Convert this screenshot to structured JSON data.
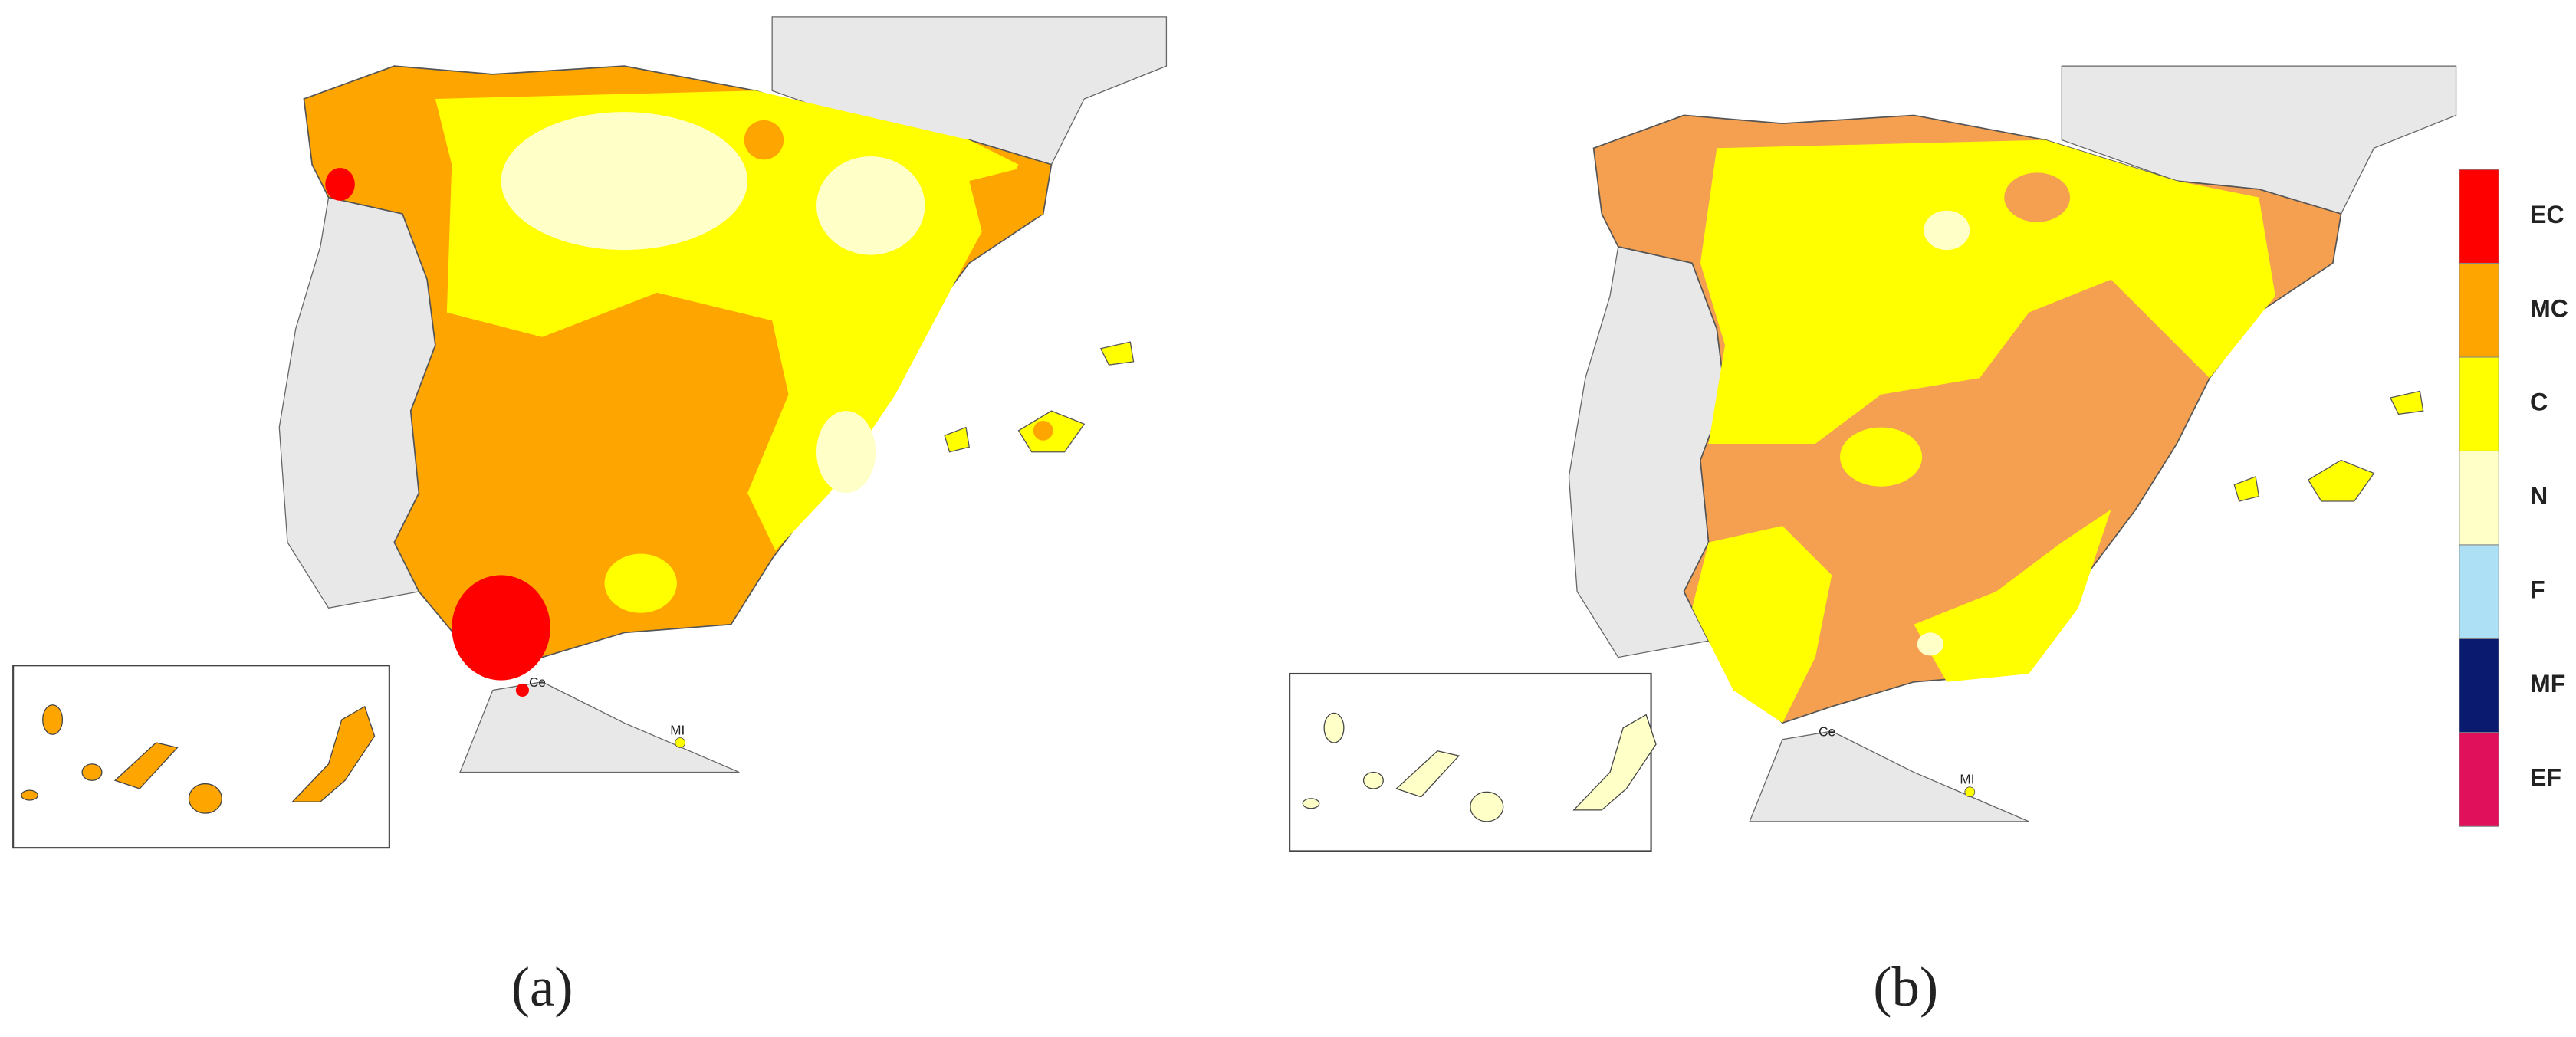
{
  "panels": [
    {
      "caption": "(a)",
      "labels": [
        "Ce",
        "MI"
      ]
    },
    {
      "caption": "(b)",
      "labels": [
        "Ce",
        "MI"
      ]
    }
  ],
  "legend": [
    {
      "label": "EC",
      "color": "#ff0000"
    },
    {
      "label": "MC",
      "color": "#ffa500"
    },
    {
      "label": "C",
      "color": "#ffff00"
    },
    {
      "label": "N",
      "color": "#ffffc8"
    },
    {
      "label": "F",
      "color": "#aee0f5"
    },
    {
      "label": "MF",
      "color": "#0a1a6e"
    },
    {
      "label": "EF",
      "color": "#e0105a"
    }
  ]
}
